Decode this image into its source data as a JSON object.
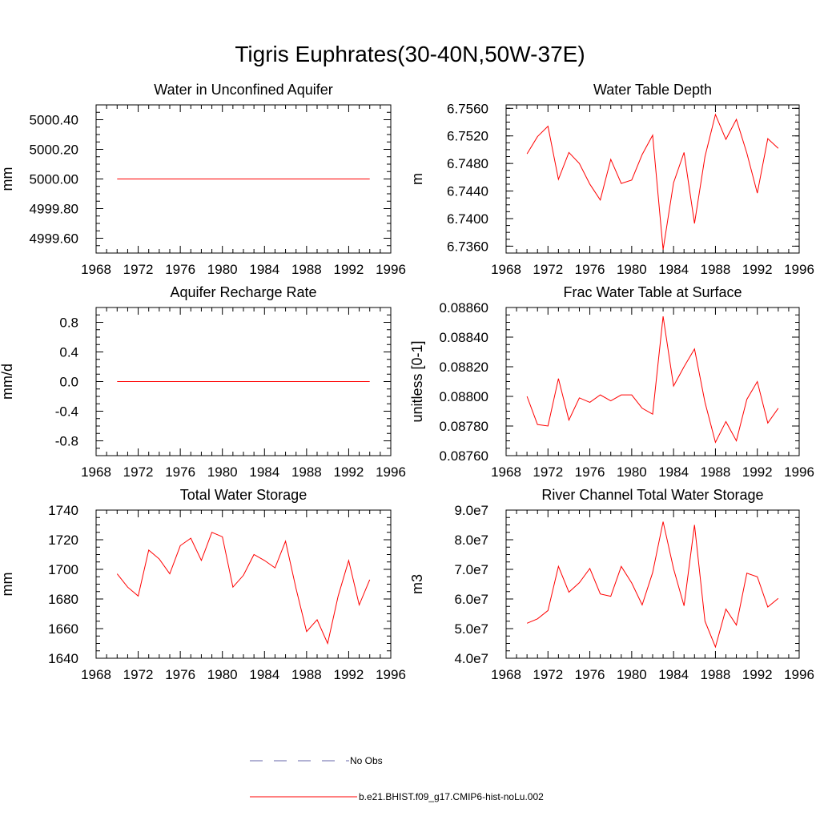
{
  "figure_title": "Tigris Euphrates(30-40N,50W-37E)",
  "colors": {
    "model": "#ff0000",
    "obs": "#6666aa",
    "axes": "#000000"
  },
  "legend": {
    "obs_label": "No Obs",
    "model_label": "b.e21.BHIST.f09_g17.CMIP6-hist-noLu.002"
  },
  "chart_data": [
    {
      "type": "line",
      "title": "Water in Unconfined Aquifer",
      "ylabel": "mm",
      "xlim": [
        1968,
        1996
      ],
      "ylim": [
        4999.5,
        5000.5
      ],
      "yticks": [
        4999.6,
        4999.8,
        5000.0,
        5000.2,
        5000.4
      ],
      "yfmt": 2,
      "xticks": [
        1968,
        1972,
        1976,
        1980,
        1984,
        1988,
        1992,
        1996
      ],
      "x": [
        1970,
        1971,
        1972,
        1973,
        1974,
        1975,
        1976,
        1977,
        1978,
        1979,
        1980,
        1981,
        1982,
        1983,
        1984,
        1985,
        1986,
        1987,
        1988,
        1989,
        1990,
        1991,
        1992,
        1993,
        1994
      ],
      "series": [
        {
          "values": [
            5000.0,
            5000.0,
            5000.0,
            5000.0,
            5000.0,
            5000.0,
            5000.0,
            5000.0,
            5000.0,
            5000.0,
            5000.0,
            5000.0,
            5000.0,
            5000.0,
            5000.0,
            5000.0,
            5000.0,
            5000.0,
            5000.0,
            5000.0,
            5000.0,
            5000.0,
            5000.0,
            5000.0,
            5000.0
          ]
        }
      ]
    },
    {
      "type": "line",
      "title": "Water Table Depth",
      "ylabel": "m",
      "xlim": [
        1968,
        1996
      ],
      "ylim": [
        6.735,
        6.7565
      ],
      "yticks": [
        6.736,
        6.74,
        6.744,
        6.748,
        6.752,
        6.756
      ],
      "yfmt": 4,
      "xticks": [
        1968,
        1972,
        1976,
        1980,
        1984,
        1988,
        1992,
        1996
      ],
      "x": [
        1970,
        1971,
        1972,
        1973,
        1974,
        1975,
        1976,
        1977,
        1978,
        1979,
        1980,
        1981,
        1982,
        1983,
        1984,
        1985,
        1986,
        1987,
        1988,
        1989,
        1990,
        1991,
        1992,
        1993,
        1994
      ],
      "series": [
        {
          "values": [
            6.7494,
            6.7519,
            6.7534,
            6.7457,
            6.7496,
            6.748,
            6.745,
            6.7427,
            6.7486,
            6.7451,
            6.7456,
            6.7493,
            6.7521,
            6.7355,
            6.7452,
            6.7496,
            6.7393,
            6.749,
            6.7551,
            6.7515,
            6.7544,
            6.7495,
            6.7437,
            6.7516,
            6.7502
          ]
        }
      ]
    },
    {
      "type": "line",
      "title": "Aquifer Recharge Rate",
      "ylabel": "mm/d",
      "xlim": [
        1968,
        1996
      ],
      "ylim": [
        -1.0,
        1.0
      ],
      "yticks": [
        -0.8,
        -0.4,
        0.0,
        0.4,
        0.8
      ],
      "yfmt": 1,
      "xticks": [
        1968,
        1972,
        1976,
        1980,
        1984,
        1988,
        1992,
        1996
      ],
      "x": [
        1970,
        1971,
        1972,
        1973,
        1974,
        1975,
        1976,
        1977,
        1978,
        1979,
        1980,
        1981,
        1982,
        1983,
        1984,
        1985,
        1986,
        1987,
        1988,
        1989,
        1990,
        1991,
        1992,
        1993,
        1994
      ],
      "series": [
        {
          "values": [
            0,
            0,
            0,
            0,
            0,
            0,
            0,
            0,
            0,
            0,
            0,
            0,
            0,
            0,
            0,
            0,
            0,
            0,
            0,
            0,
            0,
            0,
            0,
            0,
            0
          ]
        }
      ]
    },
    {
      "type": "line",
      "title": "Frac Water Table at Surface",
      "ylabel": "unitless [0-1]",
      "xlim": [
        1968,
        1996
      ],
      "ylim": [
        0.0876,
        0.0886
      ],
      "yticks": [
        0.0876,
        0.0878,
        0.088,
        0.0882,
        0.0884,
        0.0886
      ],
      "yfmt": 5,
      "xticks": [
        1968,
        1972,
        1976,
        1980,
        1984,
        1988,
        1992,
        1996
      ],
      "x": [
        1970,
        1971,
        1972,
        1973,
        1974,
        1975,
        1976,
        1977,
        1978,
        1979,
        1980,
        1981,
        1982,
        1983,
        1984,
        1985,
        1986,
        1987,
        1988,
        1989,
        1990,
        1991,
        1992,
        1993,
        1994
      ],
      "series": [
        {
          "values": [
            0.088,
            0.08781,
            0.0878,
            0.08812,
            0.08784,
            0.08799,
            0.08796,
            0.08801,
            0.08797,
            0.08801,
            0.08801,
            0.08792,
            0.08788,
            0.08854,
            0.08807,
            0.0882,
            0.08832,
            0.08796,
            0.08769,
            0.08783,
            0.0877,
            0.08798,
            0.0881,
            0.08782,
            0.08792
          ]
        }
      ]
    },
    {
      "type": "line",
      "title": "Total Water Storage",
      "ylabel": "mm",
      "xlim": [
        1968,
        1996
      ],
      "ylim": [
        1640,
        1740
      ],
      "yticks": [
        1640,
        1660,
        1680,
        1700,
        1720,
        1740
      ],
      "yfmt": 0,
      "xticks": [
        1968,
        1972,
        1976,
        1980,
        1984,
        1988,
        1992,
        1996
      ],
      "x": [
        1970,
        1971,
        1972,
        1973,
        1974,
        1975,
        1976,
        1977,
        1978,
        1979,
        1980,
        1981,
        1982,
        1983,
        1984,
        1985,
        1986,
        1987,
        1988,
        1989,
        1990,
        1991,
        1992,
        1993,
        1994
      ],
      "series": [
        {
          "values": [
            1697,
            1688,
            1682,
            1713,
            1707,
            1697,
            1716,
            1721,
            1706,
            1725,
            1722,
            1688,
            1696,
            1710,
            1706,
            1701,
            1719,
            1687,
            1658,
            1666,
            1650,
            1682,
            1706,
            1676,
            1693
          ]
        }
      ]
    },
    {
      "type": "line",
      "title": "River Channel Total Water Storage",
      "ylabel": "m3",
      "xlim": [
        1968,
        1996
      ],
      "ylim": [
        40000000,
        90000000
      ],
      "yticks": [
        40000000,
        50000000,
        60000000,
        70000000,
        80000000,
        90000000
      ],
      "ytick_labels": [
        "4.0e7",
        "5.0e7",
        "6.0e7",
        "7.0e7",
        "8.0e7",
        "9.0e7"
      ],
      "xticks": [
        1968,
        1972,
        1976,
        1980,
        1984,
        1988,
        1992,
        1996
      ],
      "x": [
        1970,
        1971,
        1972,
        1973,
        1974,
        1975,
        1976,
        1977,
        1978,
        1979,
        1980,
        1981,
        1982,
        1983,
        1984,
        1985,
        1986,
        1987,
        1988,
        1989,
        1990,
        1991,
        1992,
        1993,
        1994
      ],
      "series": [
        {
          "values": [
            51800000,
            53300000,
            56100000,
            71000000,
            62300000,
            65500000,
            70300000,
            61700000,
            60900000,
            71000000,
            65400000,
            58000000,
            68900000,
            86100000,
            70200000,
            57700000,
            85000000,
            52500000,
            43800000,
            56600000,
            51200000,
            68700000,
            67500000,
            57300000,
            60200000
          ]
        }
      ]
    }
  ]
}
